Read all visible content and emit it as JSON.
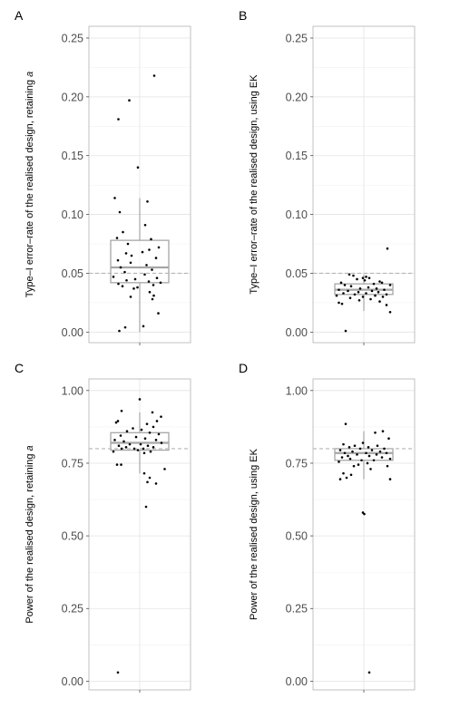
{
  "colors": {
    "background": "#ffffff",
    "grid_major": "#e3e3e3",
    "grid_minor": "#f1f1f1",
    "panel_border": "#b3b3b3",
    "box": "#a6a6a6",
    "points": "#000000",
    "reference_line": "#b5b5b5"
  },
  "chart_data": [
    {
      "panel_label": "A",
      "type": "box",
      "ylabel_prefix": "Type–I error–rate of the realised design, retaining ",
      "ylabel_suffix": "a",
      "ylim": [
        -0.009,
        0.26
      ],
      "yticks": [
        0.0,
        0.05,
        0.1,
        0.15,
        0.2,
        0.25
      ],
      "ytick_labels": [
        "0.00",
        "0.05",
        "0.10",
        "0.15",
        "0.20",
        "0.25"
      ],
      "reference_line": 0.05,
      "box": {
        "q1": 0.042,
        "median": 0.055,
        "q3": 0.078,
        "whisker_low": 0.0,
        "whisker_high": 0.114
      },
      "points": [
        {
          "jx": 0.32,
          "y": 0.218
        },
        {
          "jx": -0.23,
          "y": 0.197
        },
        {
          "jx": -0.47,
          "y": 0.181
        },
        {
          "jx": -0.04,
          "y": 0.14
        },
        {
          "jx": -0.55,
          "y": 0.114
        },
        {
          "jx": 0.17,
          "y": 0.111
        },
        {
          "jx": -0.44,
          "y": 0.102
        },
        {
          "jx": 0.12,
          "y": 0.091
        },
        {
          "jx": -0.37,
          "y": 0.085
        },
        {
          "jx": -0.5,
          "y": 0.08
        },
        {
          "jx": 0.25,
          "y": 0.079
        },
        {
          "jx": -0.26,
          "y": 0.075
        },
        {
          "jx": 0.42,
          "y": 0.072
        },
        {
          "jx": 0.21,
          "y": 0.07
        },
        {
          "jx": 0.06,
          "y": 0.068
        },
        {
          "jx": -0.3,
          "y": 0.067
        },
        {
          "jx": -0.18,
          "y": 0.065
        },
        {
          "jx": 0.36,
          "y": 0.063
        },
        {
          "jx": -0.48,
          "y": 0.061
        },
        {
          "jx": -0.2,
          "y": 0.059
        },
        {
          "jx": 0.15,
          "y": 0.057
        },
        {
          "jx": -0.42,
          "y": 0.055
        },
        {
          "jx": 0.27,
          "y": 0.053
        },
        {
          "jx": -0.33,
          "y": 0.051
        },
        {
          "jx": 0.11,
          "y": 0.049
        },
        {
          "jx": -0.58,
          "y": 0.047
        },
        {
          "jx": 0.38,
          "y": 0.046
        },
        {
          "jx": -0.1,
          "y": 0.045
        },
        {
          "jx": -0.29,
          "y": 0.044
        },
        {
          "jx": 0.2,
          "y": 0.043
        },
        {
          "jx": 0.46,
          "y": 0.042
        },
        {
          "jx": -0.47,
          "y": 0.041
        },
        {
          "jx": 0.3,
          "y": 0.04
        },
        {
          "jx": -0.38,
          "y": 0.039
        },
        {
          "jx": -0.05,
          "y": 0.038
        },
        {
          "jx": -0.13,
          "y": 0.037
        },
        {
          "jx": 0.22,
          "y": 0.034
        },
        {
          "jx": 0.31,
          "y": 0.031
        },
        {
          "jx": -0.2,
          "y": 0.03
        },
        {
          "jx": 0.28,
          "y": 0.028
        },
        {
          "jx": 0.41,
          "y": 0.016
        },
        {
          "jx": -0.32,
          "y": 0.004
        },
        {
          "jx": 0.08,
          "y": 0.005
        },
        {
          "jx": -0.45,
          "y": 0.001
        }
      ]
    },
    {
      "panel_label": "B",
      "type": "box",
      "ylabel_prefix": "Type–I error–rate of the realised design, using EK",
      "ylabel_suffix": "",
      "ylim": [
        -0.009,
        0.26
      ],
      "yticks": [
        0.0,
        0.05,
        0.1,
        0.15,
        0.2,
        0.25
      ],
      "ytick_labels": [
        "0.00",
        "0.05",
        "0.10",
        "0.15",
        "0.20",
        "0.25"
      ],
      "reference_line": 0.05,
      "box": {
        "q1": 0.032,
        "median": 0.036,
        "q3": 0.041,
        "whisker_low": 0.018,
        "whisker_high": 0.049
      },
      "points": [
        {
          "jx": 0.52,
          "y": 0.071
        },
        {
          "jx": -0.32,
          "y": 0.049
        },
        {
          "jx": -0.23,
          "y": 0.048
        },
        {
          "jx": 0.05,
          "y": 0.047
        },
        {
          "jx": -0.02,
          "y": 0.046
        },
        {
          "jx": 0.12,
          "y": 0.046
        },
        {
          "jx": -0.15,
          "y": 0.045
        },
        {
          "jx": 0.02,
          "y": 0.044
        },
        {
          "jx": 0.35,
          "y": 0.043
        },
        {
          "jx": -0.5,
          "y": 0.042
        },
        {
          "jx": 0.4,
          "y": 0.042
        },
        {
          "jx": 0.22,
          "y": 0.041
        },
        {
          "jx": -0.42,
          "y": 0.04
        },
        {
          "jx": 0.58,
          "y": 0.04
        },
        {
          "jx": -0.28,
          "y": 0.039
        },
        {
          "jx": 0.1,
          "y": 0.038
        },
        {
          "jx": -0.08,
          "y": 0.037
        },
        {
          "jx": 0.28,
          "y": 0.037
        },
        {
          "jx": -0.55,
          "y": 0.036
        },
        {
          "jx": 0.45,
          "y": 0.036
        },
        {
          "jx": -0.35,
          "y": 0.035
        },
        {
          "jx": 0.18,
          "y": 0.035
        },
        {
          "jx": -0.12,
          "y": 0.034
        },
        {
          "jx": 0.32,
          "y": 0.034
        },
        {
          "jx": -0.45,
          "y": 0.033
        },
        {
          "jx": 0.05,
          "y": 0.033
        },
        {
          "jx": -0.2,
          "y": 0.032
        },
        {
          "jx": 0.5,
          "y": 0.032
        },
        {
          "jx": -0.6,
          "y": 0.031
        },
        {
          "jx": 0.25,
          "y": 0.031
        },
        {
          "jx": -0.02,
          "y": 0.03
        },
        {
          "jx": 0.42,
          "y": 0.03
        },
        {
          "jx": -0.3,
          "y": 0.029
        },
        {
          "jx": 0.15,
          "y": 0.028
        },
        {
          "jx": -0.1,
          "y": 0.027
        },
        {
          "jx": 0.35,
          "y": 0.026
        },
        {
          "jx": -0.55,
          "y": 0.025
        },
        {
          "jx": -0.48,
          "y": 0.024
        },
        {
          "jx": 0.5,
          "y": 0.023
        },
        {
          "jx": 0.58,
          "y": 0.017
        },
        {
          "jx": -0.4,
          "y": 0.001
        }
      ]
    },
    {
      "panel_label": "C",
      "type": "box",
      "ylabel_prefix": "Power of the realised design, retaining ",
      "ylabel_suffix": "a",
      "ylim": [
        -0.03,
        1.04
      ],
      "yticks": [
        0.0,
        0.25,
        0.5,
        0.75,
        1.0
      ],
      "ytick_labels": [
        "0.00",
        "0.25",
        "0.50",
        "0.75",
        "1.00"
      ],
      "reference_line": 0.8,
      "box": {
        "q1": 0.795,
        "median": 0.82,
        "q3": 0.855,
        "whisker_low": 0.715,
        "whisker_high": 0.925
      },
      "points": [
        {
          "jx": 0.0,
          "y": 0.97
        },
        {
          "jx": -0.4,
          "y": 0.93
        },
        {
          "jx": 0.28,
          "y": 0.925
        },
        {
          "jx": 0.47,
          "y": 0.91
        },
        {
          "jx": -0.48,
          "y": 0.895
        },
        {
          "jx": 0.38,
          "y": 0.895
        },
        {
          "jx": -0.52,
          "y": 0.89
        },
        {
          "jx": 0.16,
          "y": 0.885
        },
        {
          "jx": 0.3,
          "y": 0.875
        },
        {
          "jx": -0.15,
          "y": 0.87
        },
        {
          "jx": 0.04,
          "y": 0.865
        },
        {
          "jx": -0.28,
          "y": 0.86
        },
        {
          "jx": 0.22,
          "y": 0.855
        },
        {
          "jx": 0.42,
          "y": 0.85
        },
        {
          "jx": -0.42,
          "y": 0.845
        },
        {
          "jx": -0.08,
          "y": 0.84
        },
        {
          "jx": 0.12,
          "y": 0.835
        },
        {
          "jx": -0.55,
          "y": 0.83
        },
        {
          "jx": 0.36,
          "y": 0.83
        },
        {
          "jx": -0.35,
          "y": 0.825
        },
        {
          "jx": 0.48,
          "y": 0.82
        },
        {
          "jx": -0.22,
          "y": 0.815
        },
        {
          "jx": 0.02,
          "y": 0.815
        },
        {
          "jx": -0.46,
          "y": 0.81
        },
        {
          "jx": 0.18,
          "y": 0.81
        },
        {
          "jx": -0.3,
          "y": 0.805
        },
        {
          "jx": 0.3,
          "y": 0.805
        },
        {
          "jx": -0.12,
          "y": 0.8
        },
        {
          "jx": -0.4,
          "y": 0.8
        },
        {
          "jx": 0.08,
          "y": 0.8
        },
        {
          "jx": -0.04,
          "y": 0.795
        },
        {
          "jx": -0.58,
          "y": 0.79
        },
        {
          "jx": 0.24,
          "y": 0.79
        },
        {
          "jx": 0.1,
          "y": 0.785
        },
        {
          "jx": -0.5,
          "y": 0.745
        },
        {
          "jx": -0.41,
          "y": 0.745
        },
        {
          "jx": 0.55,
          "y": 0.73
        },
        {
          "jx": 0.1,
          "y": 0.715
        },
        {
          "jx": 0.22,
          "y": 0.7
        },
        {
          "jx": 0.17,
          "y": 0.685
        },
        {
          "jx": 0.36,
          "y": 0.68
        },
        {
          "jx": 0.14,
          "y": 0.6
        },
        {
          "jx": -0.48,
          "y": 0.03
        }
      ]
    },
    {
      "panel_label": "D",
      "type": "box",
      "ylabel_prefix": "Power of the realised design, using EK",
      "ylabel_suffix": "",
      "ylim": [
        -0.03,
        1.04
      ],
      "yticks": [
        0.0,
        0.25,
        0.5,
        0.75,
        1.0
      ],
      "ytick_labels": [
        "0.00",
        "0.25",
        "0.50",
        "0.75",
        "1.00"
      ],
      "reference_line": 0.8,
      "box": {
        "q1": 0.76,
        "median": 0.785,
        "q3": 0.8,
        "whisker_low": 0.695,
        "whisker_high": 0.86
      },
      "points": [
        {
          "jx": -0.4,
          "y": 0.885
        },
        {
          "jx": 0.42,
          "y": 0.86
        },
        {
          "jx": 0.25,
          "y": 0.855
        },
        {
          "jx": 0.55,
          "y": 0.835
        },
        {
          "jx": -0.02,
          "y": 0.82
        },
        {
          "jx": -0.45,
          "y": 0.815
        },
        {
          "jx": 0.3,
          "y": 0.81
        },
        {
          "jx": -0.2,
          "y": 0.81
        },
        {
          "jx": 0.1,
          "y": 0.805
        },
        {
          "jx": -0.32,
          "y": 0.805
        },
        {
          "jx": 0.45,
          "y": 0.8
        },
        {
          "jx": -0.08,
          "y": 0.8
        },
        {
          "jx": -0.52,
          "y": 0.795
        },
        {
          "jx": 0.18,
          "y": 0.795
        },
        {
          "jx": 0.36,
          "y": 0.79
        },
        {
          "jx": -0.25,
          "y": 0.79
        },
        {
          "jx": 0.05,
          "y": 0.785
        },
        {
          "jx": -0.42,
          "y": 0.785
        },
        {
          "jx": 0.5,
          "y": 0.785
        },
        {
          "jx": -0.15,
          "y": 0.78
        },
        {
          "jx": 0.28,
          "y": 0.78
        },
        {
          "jx": -0.35,
          "y": 0.775
        },
        {
          "jx": 0.12,
          "y": 0.775
        },
        {
          "jx": -0.48,
          "y": 0.77
        },
        {
          "jx": 0.4,
          "y": 0.77
        },
        {
          "jx": -0.3,
          "y": 0.765
        },
        {
          "jx": 0.58,
          "y": 0.765
        },
        {
          "jx": -0.05,
          "y": 0.76
        },
        {
          "jx": 0.22,
          "y": 0.76
        },
        {
          "jx": -0.55,
          "y": 0.755
        },
        {
          "jx": 0.08,
          "y": 0.75
        },
        {
          "jx": -0.12,
          "y": 0.745
        },
        {
          "jx": -0.22,
          "y": 0.74
        },
        {
          "jx": 0.52,
          "y": 0.74
        },
        {
          "jx": 0.15,
          "y": 0.73
        },
        {
          "jx": -0.45,
          "y": 0.715
        },
        {
          "jx": -0.28,
          "y": 0.71
        },
        {
          "jx": -0.38,
          "y": 0.7
        },
        {
          "jx": -0.52,
          "y": 0.695
        },
        {
          "jx": 0.58,
          "y": 0.695
        },
        {
          "jx": -0.02,
          "y": 0.58
        },
        {
          "jx": 0.01,
          "y": 0.575
        },
        {
          "jx": 0.12,
          "y": 0.03
        }
      ]
    }
  ]
}
